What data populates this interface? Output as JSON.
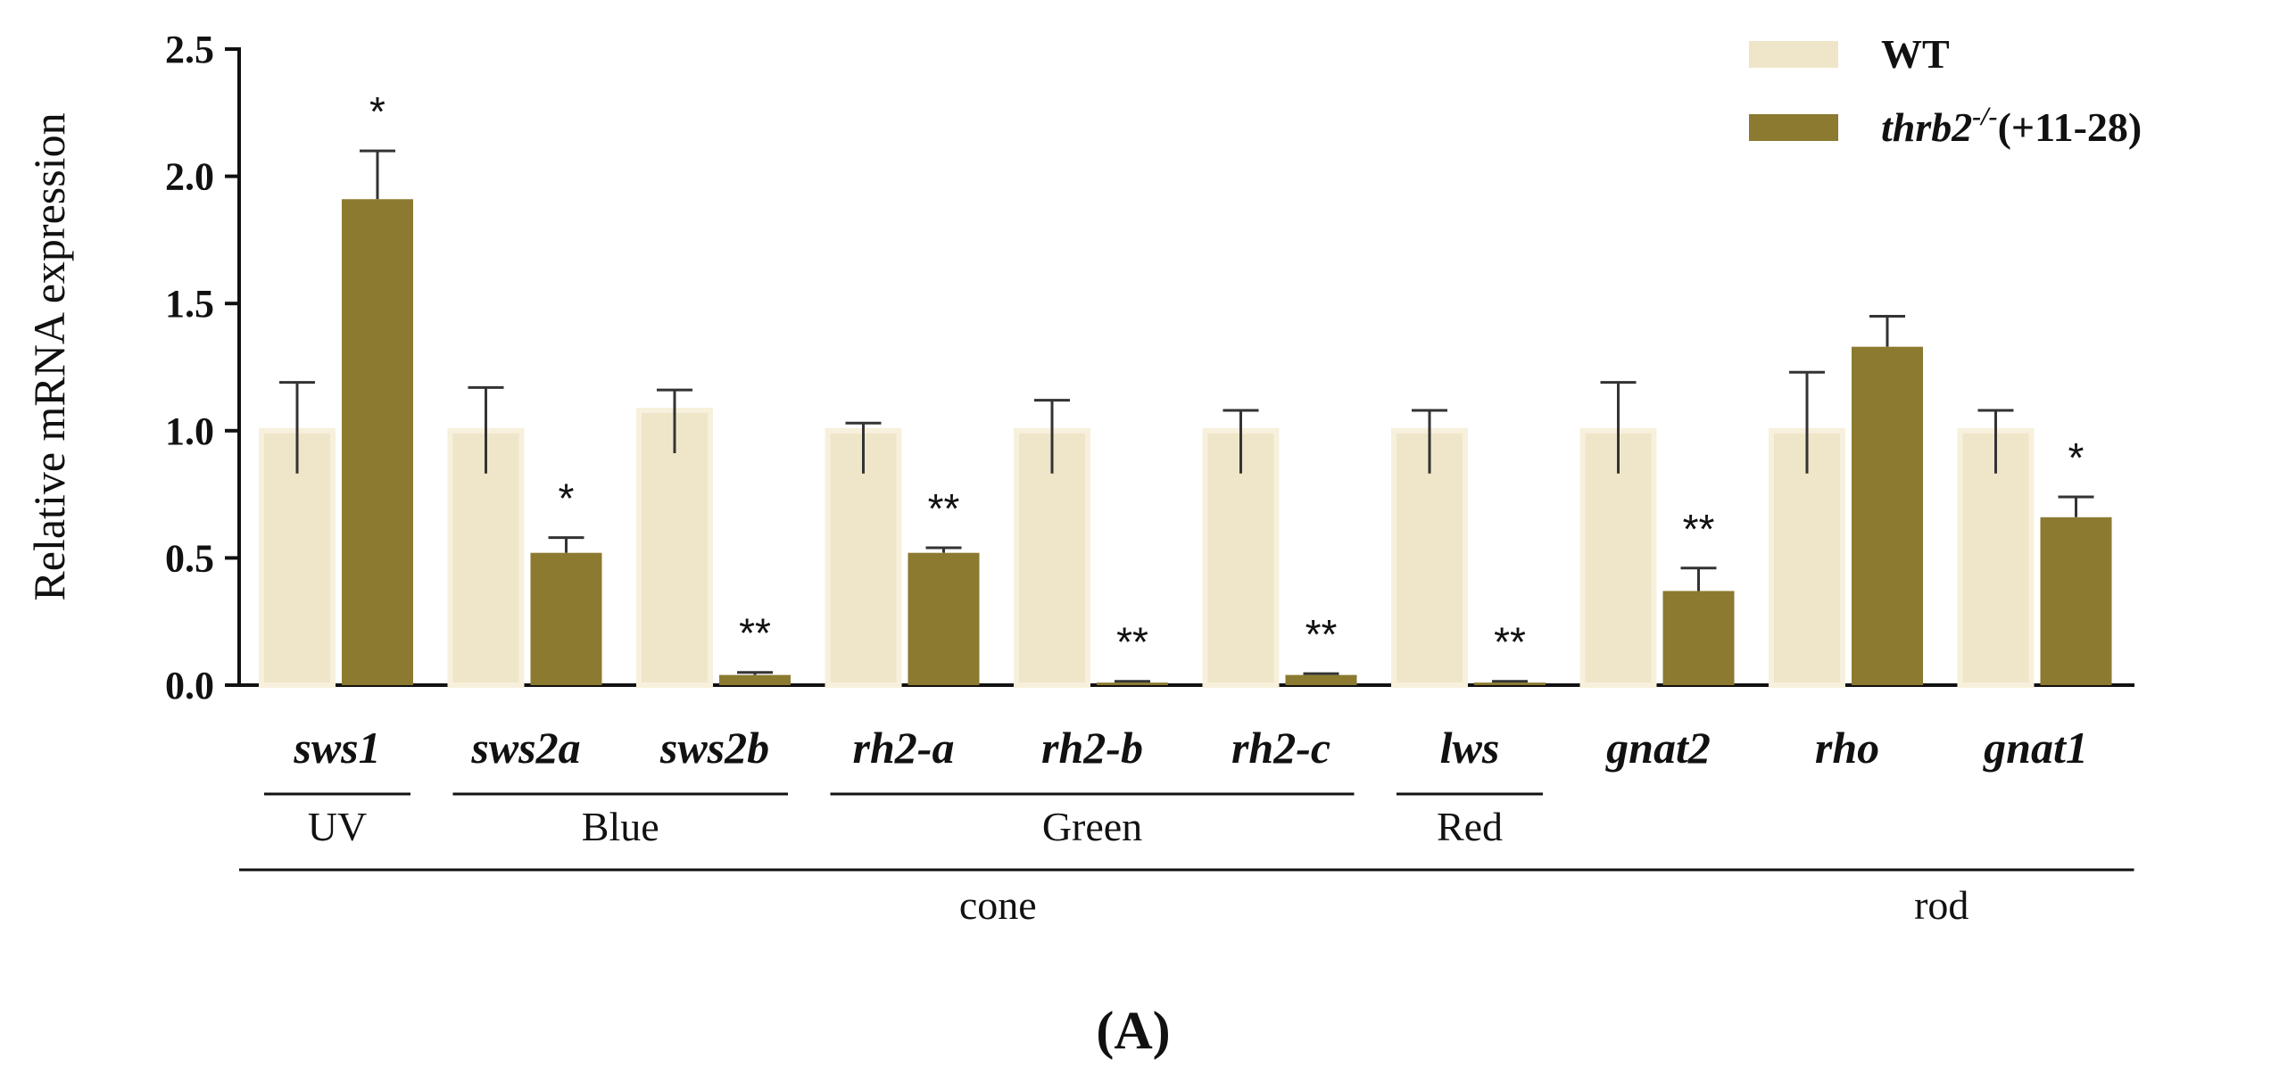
{
  "chart_data": {
    "type": "bar",
    "ylabel": "Relative mRNA expression",
    "ylim": [
      0,
      2.5
    ],
    "yticks": [
      "0.0",
      "0.5",
      "1.0",
      "1.5",
      "2.0",
      "2.5"
    ],
    "ytick_values": [
      0,
      0.5,
      1.0,
      1.5,
      2.0,
      2.5
    ],
    "categories": [
      "sws1",
      "sws2a",
      "sws2b",
      "rh2-a",
      "rh2-b",
      "rh2-c",
      "lws",
      "gnat2",
      "rho",
      "gnat1"
    ],
    "series": [
      {
        "name": "WT",
        "color": "#efe6c9",
        "values": [
          1.0,
          1.0,
          1.08,
          1.0,
          1.0,
          1.0,
          1.0,
          1.0,
          1.0,
          1.0
        ],
        "errors": [
          0.19,
          0.17,
          0.08,
          0.03,
          0.12,
          0.08,
          0.08,
          0.19,
          0.23,
          0.08
        ]
      },
      {
        "name": "thrb2-/-(+11-28)",
        "color": "#8b7a2f",
        "values": [
          1.91,
          0.52,
          0.04,
          0.52,
          0.01,
          0.04,
          0.01,
          0.37,
          1.33,
          0.66
        ],
        "errors": [
          0.19,
          0.06,
          0.01,
          0.02,
          0.005,
          0.005,
          0.005,
          0.09,
          0.12,
          0.08
        ]
      }
    ],
    "significance": [
      "*",
      "*",
      "**",
      "**",
      "**",
      "**",
      "**",
      "**",
      "",
      "*"
    ],
    "legend_position": "top-right",
    "groups": [
      {
        "label": "UV",
        "from": 0,
        "to": 0
      },
      {
        "label": "Blue",
        "from": 1,
        "to": 2
      },
      {
        "label": "Green",
        "from": 3,
        "to": 5
      },
      {
        "label": "Red",
        "from": 6,
        "to": 6
      }
    ],
    "supergroups": [
      {
        "label": "cone",
        "from": 0,
        "to": 7
      },
      {
        "label": "rod",
        "from": 8,
        "to": 9
      }
    ],
    "legend": {
      "wt_label": "WT",
      "mut_base": "thrb2",
      "mut_sup": "-/-",
      "mut_suffix": "(+11-28)"
    },
    "panel_label": "(A)"
  }
}
